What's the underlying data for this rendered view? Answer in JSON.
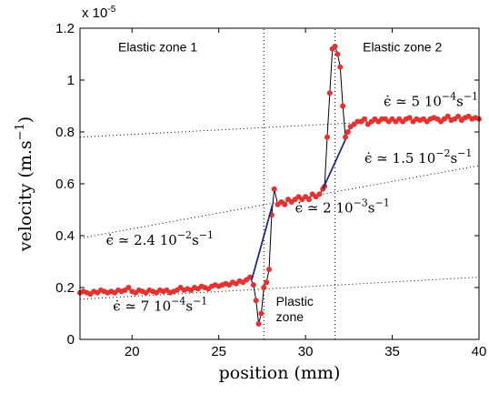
{
  "chart_data": {
    "type": "line",
    "title": "",
    "xlabel": "position (mm)",
    "ylabel": "velocity (m.s",
    "ylabel_sup": "−1",
    "ylabel_close": ")",
    "xlim": [
      17,
      40
    ],
    "ylim": [
      0,
      1.2
    ],
    "y_multiplier": "x 10",
    "y_multiplier_exp": "-5",
    "xticks": [
      20,
      25,
      30,
      35,
      40
    ],
    "yticks": [
      0,
      0.2,
      0.4,
      0.6,
      0.8,
      1,
      1.2
    ],
    "xtick_labels": [
      "20",
      "25",
      "30",
      "35",
      "40"
    ],
    "ytick_labels": [
      "0",
      "0.2",
      "0.4",
      "0.6",
      "0.8",
      "1",
      "1.2"
    ],
    "grid": false,
    "legend": "none",
    "colors": {
      "points": "#e8312f",
      "measured_line": "#000000",
      "fit_line": "#1f2a8c",
      "guide_line": "#000000"
    },
    "series": [
      {
        "kind": "measured",
        "x": [
          17.0,
          17.2,
          17.4,
          17.6,
          17.8,
          18.0,
          18.2,
          18.4,
          18.6,
          18.8,
          19.0,
          19.2,
          19.4,
          19.6,
          19.8,
          20.0,
          20.2,
          20.4,
          20.6,
          20.8,
          21.0,
          21.2,
          21.4,
          21.6,
          21.8,
          22.0,
          22.2,
          22.4,
          22.6,
          22.8,
          23.0,
          23.2,
          23.4,
          23.6,
          23.8,
          24.0,
          24.2,
          24.4,
          24.6,
          24.8,
          25.0,
          25.2,
          25.4,
          25.6,
          25.8,
          26.0,
          26.2,
          26.4,
          26.6,
          26.8,
          27.0,
          27.15,
          27.3,
          27.45,
          27.6,
          27.75,
          27.9,
          28.05,
          28.2,
          28.4,
          28.6,
          28.8,
          29.0,
          29.2,
          29.4,
          29.6,
          29.8,
          30.0,
          30.2,
          30.4,
          30.6,
          30.8,
          31.0,
          31.1,
          31.25,
          31.4,
          31.55,
          31.7,
          31.85,
          32.0,
          32.15,
          32.3,
          32.45,
          32.6,
          32.8,
          33.0,
          33.2,
          33.4,
          33.6,
          33.8,
          34.0,
          34.2,
          34.4,
          34.6,
          34.8,
          35.0,
          35.2,
          35.4,
          35.6,
          35.8,
          36.0,
          36.2,
          36.4,
          36.6,
          36.8,
          37.0,
          37.2,
          37.4,
          37.6,
          37.8,
          38.0,
          38.2,
          38.4,
          38.6,
          38.8,
          39.0,
          39.2,
          39.4,
          39.6,
          39.8,
          40.0
        ],
        "y": [
          0.18,
          0.185,
          0.18,
          0.175,
          0.185,
          0.18,
          0.19,
          0.185,
          0.18,
          0.185,
          0.18,
          0.19,
          0.185,
          0.19,
          0.2,
          0.185,
          0.18,
          0.19,
          0.185,
          0.18,
          0.19,
          0.185,
          0.18,
          0.19,
          0.185,
          0.19,
          0.18,
          0.185,
          0.19,
          0.2,
          0.19,
          0.195,
          0.19,
          0.2,
          0.195,
          0.205,
          0.2,
          0.195,
          0.205,
          0.21,
          0.205,
          0.21,
          0.215,
          0.21,
          0.22,
          0.215,
          0.225,
          0.22,
          0.23,
          0.24,
          0.21,
          0.15,
          0.06,
          0.1,
          0.2,
          0.22,
          0.27,
          0.48,
          0.58,
          0.52,
          0.53,
          0.52,
          0.54,
          0.53,
          0.54,
          0.55,
          0.54,
          0.55,
          0.54,
          0.56,
          0.55,
          0.56,
          0.58,
          0.59,
          0.78,
          0.95,
          1.12,
          1.13,
          1.1,
          1.05,
          0.9,
          0.78,
          0.8,
          0.82,
          0.83,
          0.84,
          0.84,
          0.85,
          0.83,
          0.84,
          0.85,
          0.84,
          0.85,
          0.85,
          0.84,
          0.85,
          0.84,
          0.85,
          0.84,
          0.85,
          0.855,
          0.84,
          0.85,
          0.845,
          0.85,
          0.84,
          0.85,
          0.855,
          0.85,
          0.84,
          0.85,
          0.86,
          0.845,
          0.85,
          0.86,
          0.845,
          0.855,
          0.86,
          0.85,
          0.855,
          0.85
        ]
      },
      {
        "kind": "fit",
        "x": [
          26.9,
          28.1
        ],
        "y": [
          0.23,
          0.52
        ]
      },
      {
        "kind": "fit",
        "x": [
          31.0,
          32.3
        ],
        "y": [
          0.58,
          0.77
        ]
      }
    ],
    "guide_lines": [
      {
        "x": [
          17,
          40
        ],
        "y": [
          0.78,
          0.86
        ]
      },
      {
        "x": [
          17,
          40
        ],
        "y": [
          0.39,
          0.67
        ]
      },
      {
        "x": [
          17,
          40
        ],
        "y": [
          0.155,
          0.24
        ]
      },
      {
        "x": [
          27.6,
          27.6
        ],
        "y": [
          0,
          1.2
        ]
      },
      {
        "x": [
          31.7,
          31.7
        ],
        "y": [
          0,
          1.2
        ]
      }
    ],
    "annotations": [
      {
        "name": "elastic-zone-1",
        "text": "Elastic zone 1",
        "x": 19.2,
        "y": 1.11,
        "style": "zone"
      },
      {
        "name": "elastic-zone-2",
        "text": "Elastic zone 2",
        "x": 33.3,
        "y": 1.11,
        "style": "zone"
      },
      {
        "name": "plastic-zone-line1",
        "text": "Plastic",
        "x": 28.3,
        "y": 0.13,
        "style": "zone"
      },
      {
        "name": "plastic-zone-line2",
        "text": "zone",
        "x": 28.3,
        "y": 0.07,
        "style": "zone"
      },
      {
        "name": "rate-elastic-2",
        "text": "ϵ̇ ≃ 5 10",
        "sup": "−4",
        "unit": "s",
        "unit_sup": "−1",
        "x": 34.5,
        "y": 0.9,
        "style": "rate"
      },
      {
        "name": "rate-plastic-upper",
        "text": "ϵ̇ ≃ 1.5 10",
        "sup": "−2",
        "unit": "s",
        "unit_sup": "−1",
        "x": 33.4,
        "y": 0.68,
        "style": "rate"
      },
      {
        "name": "rate-middle",
        "text": "ϵ̇ ≃ 2 10",
        "sup": "−3",
        "unit": "s",
        "unit_sup": "−1",
        "x": 29.4,
        "y": 0.49,
        "style": "rate"
      },
      {
        "name": "rate-plastic-lower",
        "text": "ϵ̇ ≃ 2.4 10",
        "sup": "−2",
        "unit": "s",
        "unit_sup": "−1",
        "x": 18.5,
        "y": 0.365,
        "style": "rate"
      },
      {
        "name": "rate-elastic-1",
        "text": "ϵ̇ ≃ 7 10",
        "sup": "−4",
        "unit": "s",
        "unit_sup": "−1",
        "x": 18.9,
        "y": 0.11,
        "style": "rate"
      }
    ]
  }
}
